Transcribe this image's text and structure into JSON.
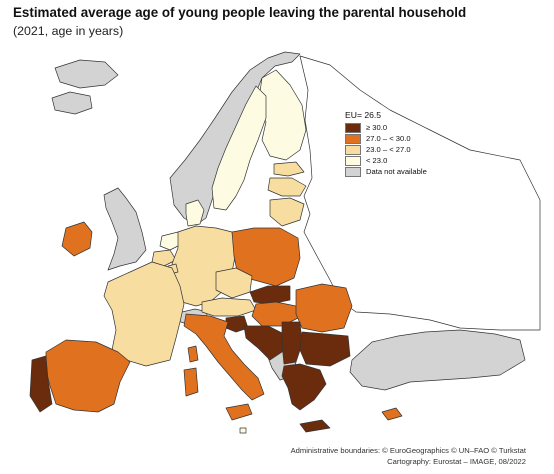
{
  "title": "Estimated average age of young people leaving the parental household",
  "subtitle": "(2021, age in years)",
  "legend": {
    "eu_average": "EU= 26.5",
    "classes": [
      {
        "label": "≥ 30.0",
        "color": "#6b2c0e"
      },
      {
        "label": "27.0 – < 30.0",
        "color": "#e0711f"
      },
      {
        "label": "23.0 – < 27.0",
        "color": "#f7dda0"
      },
      {
        "label": "< 23.0",
        "color": "#fefbe3"
      },
      {
        "label": "Data not available",
        "color": "#d3d3d3"
      }
    ]
  },
  "credits": {
    "line1": "Administrative boundaries: © EuroGeographics © UN–FAO © Turkstat",
    "line2": "Cartography: Eurostat – IMAGE, 08/2022"
  }
}
